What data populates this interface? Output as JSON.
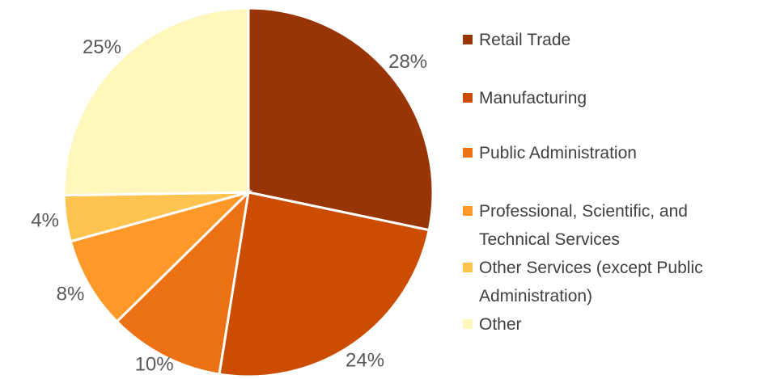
{
  "chart_data": {
    "type": "pie",
    "categories": [
      "Retail Trade",
      "Manufacturing",
      "Public Administration",
      "Professional, Scientific, and Technical Services",
      "Other Services (except Public Administration)",
      "Other"
    ],
    "values": [
      28,
      24,
      10,
      8,
      4,
      25
    ],
    "value_labels": [
      "28%",
      "24%",
      "10%",
      "8%",
      "4%",
      "25%"
    ],
    "colors": [
      "#993404",
      "#cc4c02",
      "#ec7014",
      "#fe9929",
      "#fec44f",
      "#fff7bc"
    ],
    "legend": "right"
  }
}
